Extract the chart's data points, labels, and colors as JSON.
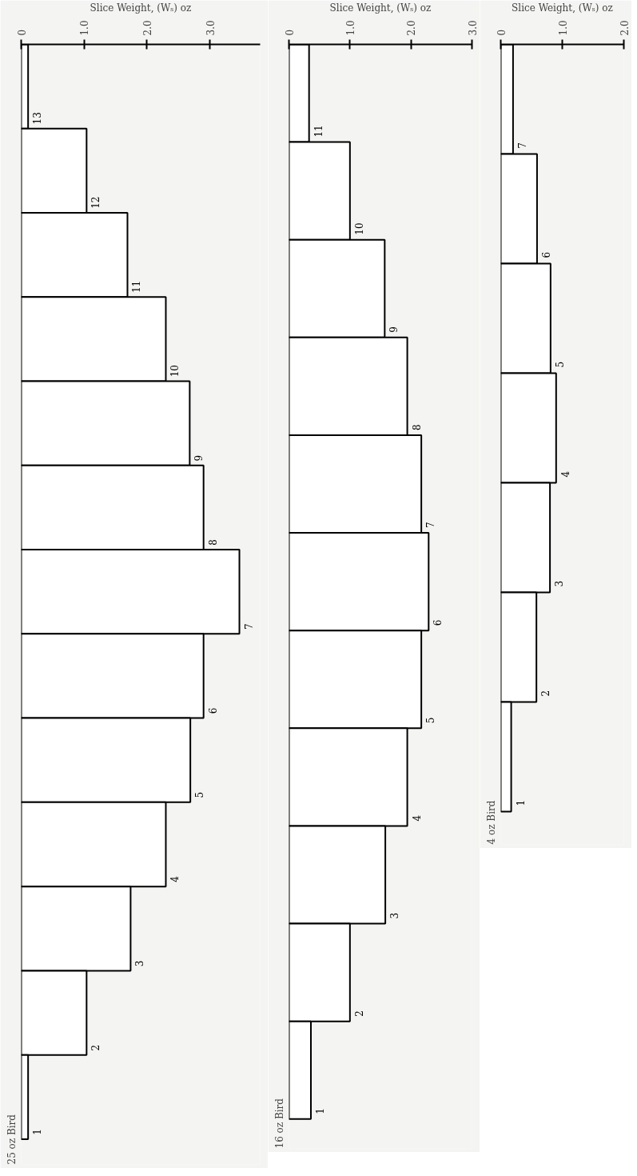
{
  "chart_data": [
    {
      "type": "bar",
      "orientation": "horizontal",
      "title": "25 oz Bird",
      "xlabel": "Slice Weight, (Wₛ) oz",
      "categories": [
        "13",
        "12",
        "11",
        "10",
        "9",
        "8",
        "7",
        "6",
        "5",
        "4",
        "3",
        "2",
        "1"
      ],
      "values": [
        0.11,
        1.04,
        1.69,
        2.3,
        2.68,
        2.9,
        3.47,
        2.9,
        2.69,
        2.3,
        1.74,
        1.04,
        0.11
      ],
      "color": "#ffffff",
      "xlim": [
        0,
        3.8
      ],
      "xticks": [
        0,
        {
          "value": 1,
          "label": "1.0"
        },
        {
          "value": 2,
          "label": "2.0"
        },
        {
          "value": 3,
          "label": "3.0"
        }
      ],
      "grid": false
    },
    {
      "type": "bar",
      "orientation": "horizontal",
      "title": "16 oz Bird",
      "xlabel": "Slice Weight, (Wₛ) oz",
      "categories": [
        "11",
        "10",
        "9",
        "8",
        "7",
        "6",
        "5",
        "4",
        "3",
        "2",
        "1"
      ],
      "values": [
        0.33,
        1.0,
        1.57,
        1.94,
        2.17,
        2.29,
        2.17,
        1.94,
        1.58,
        1.0,
        0.36
      ],
      "color": "#ffffff",
      "xlim": [
        0,
        3.0
      ],
      "xticks": [
        0,
        {
          "value": 1,
          "label": "1.0"
        },
        {
          "value": 2,
          "label": "2.0"
        },
        {
          "value": 3,
          "label": "3.0"
        }
      ],
      "grid": false
    },
    {
      "type": "bar",
      "orientation": "horizontal",
      "title": "4 oz Bird",
      "xlabel": "Slice Weight, (Wₛ) oz",
      "categories": [
        "7",
        "6",
        "5",
        "4",
        "3",
        "2",
        "1"
      ],
      "values": [
        0.2,
        0.59,
        0.81,
        0.9,
        0.8,
        0.58,
        0.17
      ],
      "color": "#ffffff",
      "xlim": [
        0,
        2.0
      ],
      "xticks": [
        0,
        {
          "value": 1,
          "label": "1.0"
        },
        {
          "value": 2,
          "label": "2.0"
        }
      ],
      "grid": false
    }
  ]
}
